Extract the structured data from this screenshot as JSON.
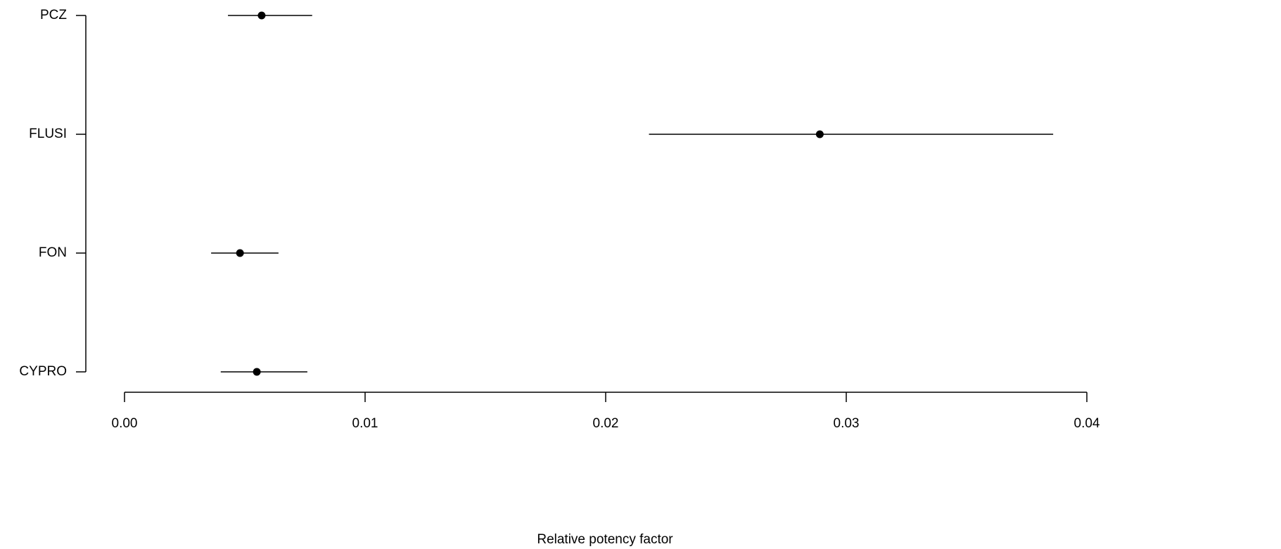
{
  "chart_data": {
    "type": "errorbar",
    "xlabel": "Relative potency factor",
    "categories": [
      "PCZ",
      "FLUSI",
      "FON",
      "CYPRO"
    ],
    "values": [
      0.0057,
      0.0289,
      0.0048,
      0.0055
    ],
    "lower": [
      0.0043,
      0.0218,
      0.0036,
      0.004
    ],
    "upper": [
      0.0078,
      0.0386,
      0.0064,
      0.0076
    ],
    "color": "#000000",
    "xlim": [
      0,
      0.04
    ],
    "xticks": [
      {
        "value": 0,
        "label": "0.00"
      },
      0.01,
      0.02,
      0.03,
      0.04
    ]
  }
}
